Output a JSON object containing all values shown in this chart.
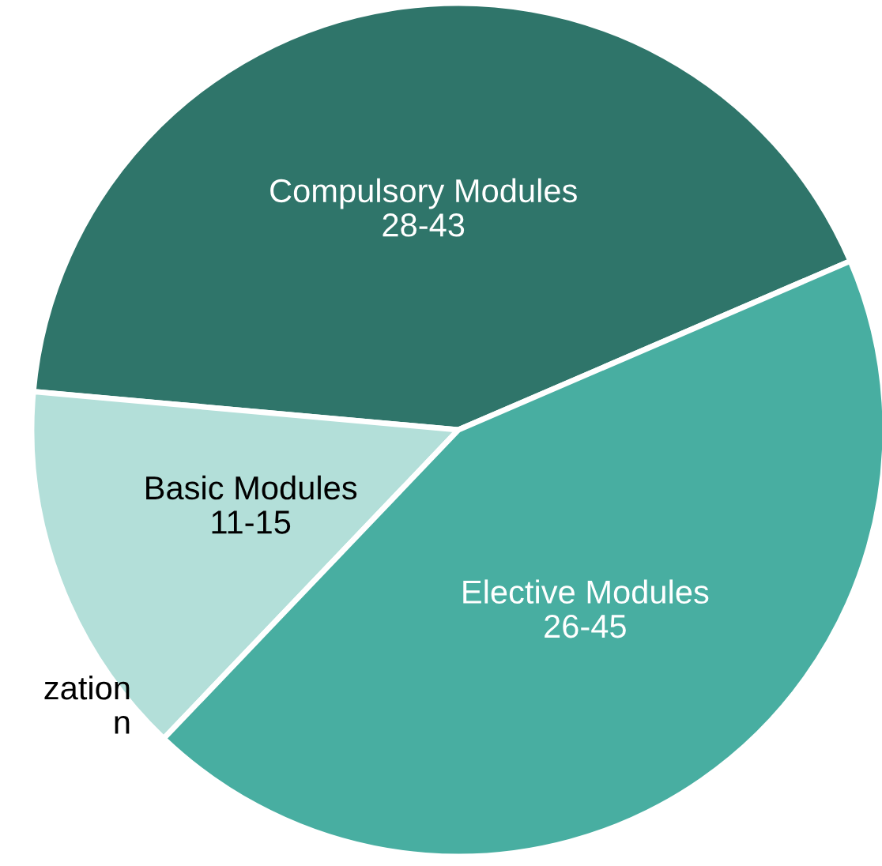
{
  "chart_data": {
    "type": "pie",
    "categories": [
      "Compulsory Modules\n28-43",
      "Basic Modules\n11-15",
      "Elective Modules\n26-45"
    ],
    "values": [
      42.1,
      14.3,
      43.6
    ],
    "colors": [
      "#2f756a",
      "#b3dfd9",
      "#48aea1"
    ],
    "annotations": [
      "zation\nn"
    ]
  }
}
